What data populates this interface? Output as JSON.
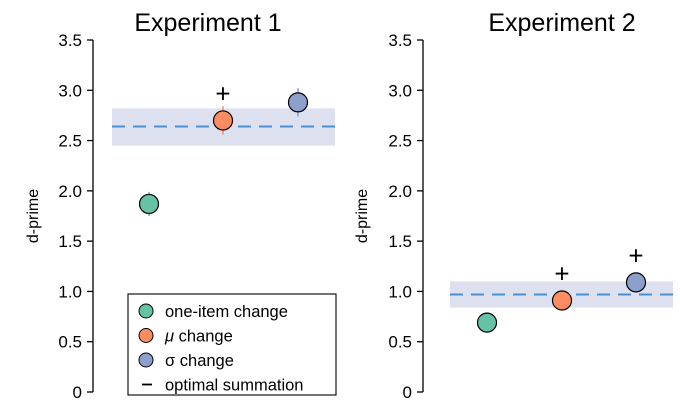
{
  "chart_data": [
    {
      "type": "scatter",
      "title": "Experiment 1",
      "ylabel": "d-prime",
      "ylim": [
        0,
        3.5
      ],
      "yticks": [
        "0",
        "0.5",
        "1.0",
        "1.5",
        "2.0",
        "2.5",
        "3.0",
        "3.5"
      ],
      "x": [
        "one-item change",
        "μ change",
        "σ change"
      ],
      "points": [
        {
          "name": "one-item change",
          "y": 1.87,
          "err": 0.12,
          "color": "#66c2a5",
          "plus": ""
        },
        {
          "name": "μ change",
          "y": 2.7,
          "err": 0.14,
          "color": "#fc8d62",
          "plus": "+"
        },
        {
          "name": "σ change",
          "y": 2.88,
          "err": 0.14,
          "color": "#8da0cb",
          "plus": ""
        }
      ],
      "optimal_summation": {
        "value": 2.64,
        "band": [
          2.45,
          2.82
        ]
      }
    },
    {
      "type": "scatter",
      "title": "Experiment 2",
      "ylabel": "d-prime",
      "ylim": [
        0,
        3.5
      ],
      "yticks": [
        "0",
        "0.5",
        "1.0",
        "1.5",
        "2.0",
        "2.5",
        "3.0",
        "3.5"
      ],
      "x": [
        "one-item change",
        "μ change",
        "σ change"
      ],
      "points": [
        {
          "name": "one-item change",
          "y": 0.69,
          "err": 0.05,
          "color": "#66c2a5",
          "plus": ""
        },
        {
          "name": "μ change",
          "y": 0.91,
          "err": 0.05,
          "color": "#fc8d62",
          "plus": "+"
        },
        {
          "name": "σ change",
          "y": 1.09,
          "err": 0.06,
          "color": "#8da0cb",
          "plus": "+"
        }
      ],
      "optimal_summation": {
        "value": 0.97,
        "band": [
          0.84,
          1.1
        ]
      }
    }
  ],
  "legend": {
    "position": "bottom-center of left panel",
    "items": [
      {
        "label_prefix": "",
        "label_symbol": "",
        "label_text": "one-item change",
        "color": "#66c2a5",
        "kind": "circle"
      },
      {
        "label_prefix": "",
        "label_symbol": "μ",
        "label_text": " change",
        "color": "#fc8d62",
        "kind": "circle"
      },
      {
        "label_prefix": "",
        "label_symbol": "σ",
        "label_text": " change",
        "color": "#8da0cb",
        "kind": "circle"
      },
      {
        "label_prefix": "",
        "label_symbol": "",
        "label_text": "optimal summation",
        "color": "#000000",
        "kind": "dash"
      }
    ]
  },
  "colors": {
    "band": "#dde0ee",
    "dash_line": "#4a90d0",
    "axis": "#000000"
  }
}
